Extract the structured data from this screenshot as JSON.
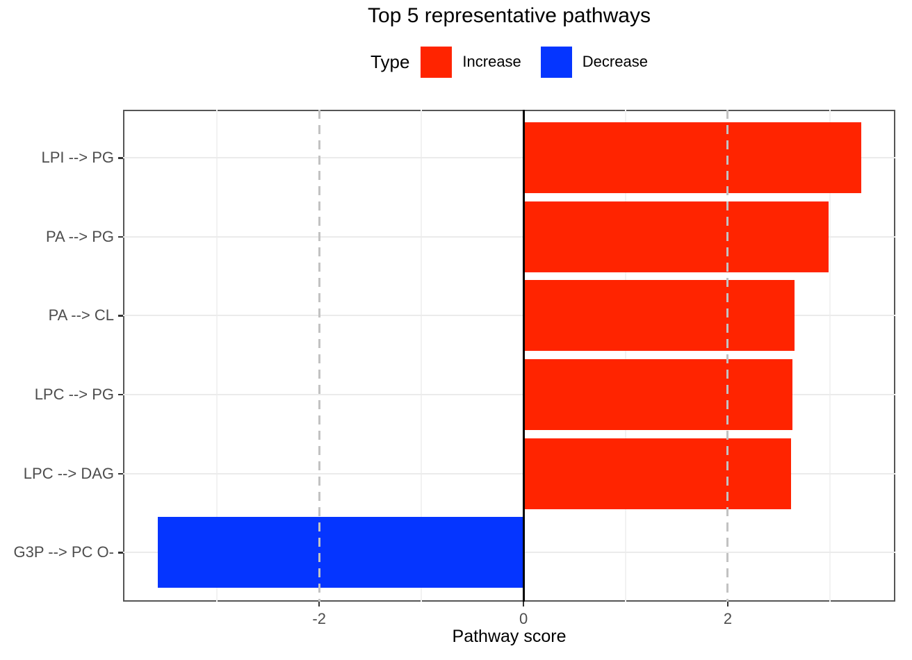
{
  "title": "Top 5 representative pathways",
  "legend": {
    "title": "Type",
    "entries": [
      {
        "label": "Increase",
        "color": "#FF2400"
      },
      {
        "label": "Decrease",
        "color": "#0535FF"
      }
    ]
  },
  "chart_data": {
    "type": "bar",
    "orientation": "horizontal",
    "title": "Top 5 representative pathways",
    "categories": [
      "LPI --> PG",
      "PA --> PG",
      "PA --> CL",
      "LPC --> PG",
      "LPC --> DAG",
      "G3P --> PC O-"
    ],
    "values": [
      3.31,
      2.99,
      2.65,
      2.63,
      2.62,
      -3.58
    ],
    "types": [
      "Increase",
      "Increase",
      "Increase",
      "Increase",
      "Increase",
      "Decrease"
    ],
    "bar_colors": {
      "Increase": "#FF2400",
      "Decrease": "#0535FF"
    },
    "xlabel": "Pathway score",
    "ylabel": "",
    "xlim": [
      -3.92,
      3.64
    ],
    "x_ticks": [
      -2,
      0,
      2
    ],
    "x_tick_labels": [
      "-2",
      "0",
      "2"
    ],
    "x_minor_gridlines": [
      -3,
      -1,
      1,
      3
    ],
    "reference_lines": [
      {
        "x": -2,
        "style": "dashed",
        "color": "#C2C2C2"
      },
      {
        "x": 2,
        "style": "dashed",
        "color": "#C2C2C2"
      },
      {
        "x": 0,
        "style": "solid",
        "color": "#000000"
      }
    ],
    "legend_position": "top",
    "grid": true
  },
  "colors": {
    "axis_text": "#4d4d4d",
    "tick_mark": "#333333",
    "grid_major": "#EBEBEB",
    "grid_minor": "#F2F2F2",
    "panel_border": "#555555",
    "background": "#FFFFFF"
  }
}
